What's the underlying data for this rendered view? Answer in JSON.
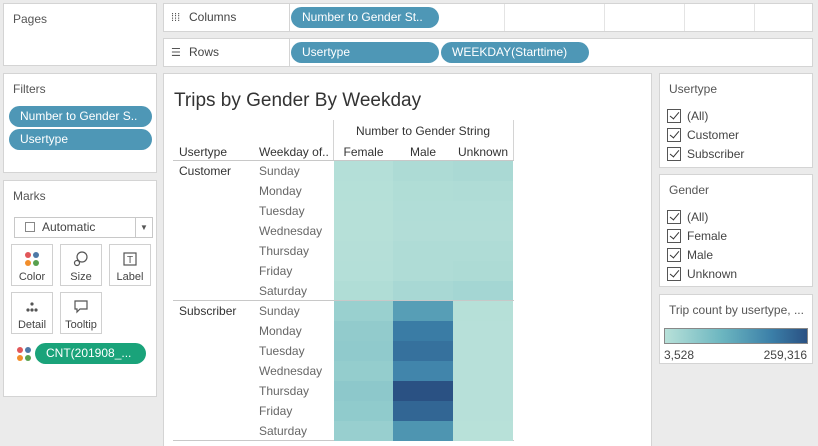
{
  "pages_panel": {
    "title": "Pages"
  },
  "columns_shelf": {
    "label": "Columns",
    "pills": [
      "Number to Gender St.."
    ]
  },
  "rows_shelf": {
    "label": "Rows",
    "pills": [
      "Usertype",
      "WEEKDAY(Starttime)"
    ]
  },
  "filters_panel": {
    "title": "Filters",
    "pills": [
      "Number to Gender S..",
      "Usertype"
    ]
  },
  "marks_panel": {
    "title": "Marks",
    "mark_type": "Automatic",
    "buttons": [
      "Color",
      "Size",
      "Label",
      "Detail",
      "Tooltip"
    ],
    "field_pill": "CNT(201908_..."
  },
  "view": {
    "title": "Trips by Gender By Weekday",
    "column_header": "Number to Gender String",
    "row_headers": [
      "Usertype",
      "Weekday of.."
    ],
    "columns": [
      "Female",
      "Male",
      "Unknown"
    ],
    "groups": [
      {
        "name": "Customer",
        "days": [
          "Sunday",
          "Monday",
          "Tuesday",
          "Wednesday",
          "Thursday",
          "Friday",
          "Saturday"
        ]
      },
      {
        "name": "Subscriber",
        "days": [
          "Sunday",
          "Monday",
          "Tuesday",
          "Wednesday",
          "Thursday",
          "Friday",
          "Saturday"
        ]
      }
    ]
  },
  "chart_data": {
    "type": "heatmap",
    "title": "Trips by Gender By Weekday",
    "x_categories": [
      "Female",
      "Male",
      "Unknown"
    ],
    "y_categories": [
      "Customer Sunday",
      "Customer Monday",
      "Customer Tuesday",
      "Customer Wednesday",
      "Customer Thursday",
      "Customer Friday",
      "Customer Saturday",
      "Subscriber Sunday",
      "Subscriber Monday",
      "Subscriber Tuesday",
      "Subscriber Wednesday",
      "Subscriber Thursday",
      "Subscriber Friday",
      "Subscriber Saturday"
    ],
    "values": [
      [
        9000,
        18000,
        22000
      ],
      [
        7000,
        14000,
        15000
      ],
      [
        6000,
        13000,
        13000
      ],
      [
        6000,
        12000,
        12000
      ],
      [
        8000,
        15000,
        16000
      ],
      [
        9000,
        16000,
        18000
      ],
      [
        14000,
        25000,
        30000
      ],
      [
        45000,
        145000,
        6000
      ],
      [
        55000,
        200000,
        5500
      ],
      [
        58000,
        215000,
        5000
      ],
      [
        52000,
        185000,
        5200
      ],
      [
        62000,
        259316,
        5300
      ],
      [
        57000,
        230000,
        5000
      ],
      [
        46000,
        160000,
        3528
      ]
    ],
    "color_range": [
      3528,
      259316
    ],
    "color_min": "#b8e1d9",
    "color_max": "#2a5183"
  },
  "usertype_filter": {
    "title": "Usertype",
    "options": [
      "(All)",
      "Customer",
      "Subscriber"
    ]
  },
  "gender_filter": {
    "title": "Gender",
    "options": [
      "(All)",
      "Female",
      "Male",
      "Unknown"
    ]
  },
  "legend": {
    "title": "Trip count by usertype, ...",
    "min_label": "3,528",
    "max_label": "259,316"
  }
}
